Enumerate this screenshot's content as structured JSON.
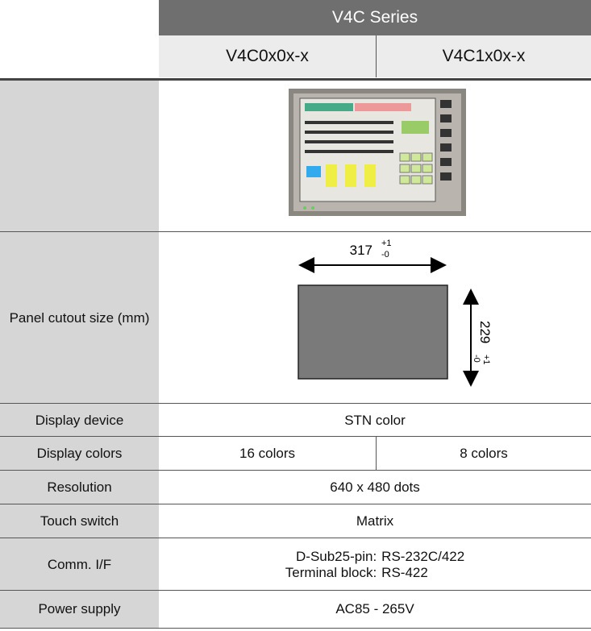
{
  "header": {
    "series": "V4C Series",
    "models": [
      "V4C0x0x-x",
      "V4C1x0x-x"
    ]
  },
  "cutout": {
    "label": "Panel cutout size (mm)",
    "width": "317",
    "width_plus": "+1",
    "width_minus": "-0",
    "height": "229",
    "height_plus": "+1",
    "height_minus": "-0"
  },
  "rows": [
    {
      "label": "Display device",
      "values": [
        "STN color"
      ]
    },
    {
      "label": "Display colors",
      "values": [
        "16 colors",
        "8 colors"
      ]
    },
    {
      "label": "Resolution",
      "values": [
        "640 x 480 dots"
      ]
    },
    {
      "label": "Touch switch",
      "values": [
        "Matrix"
      ]
    },
    {
      "label": "Comm. I/F",
      "lines": [
        [
          "D-Sub25-pin:",
          "RS-232C/422"
        ],
        [
          "Terminal block:",
          "RS-422"
        ]
      ]
    },
    {
      "label": "Power supply",
      "values": [
        "AC85 - 265V"
      ]
    }
  ]
}
